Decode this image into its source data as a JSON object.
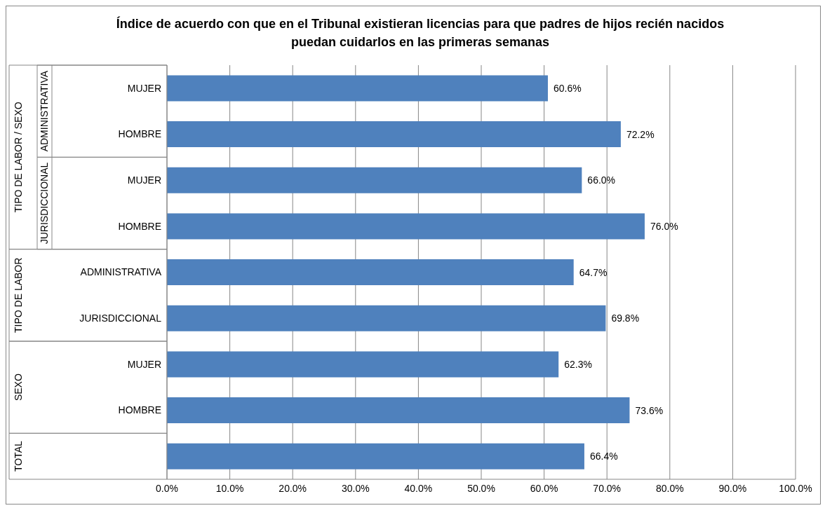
{
  "chart_data": {
    "type": "bar",
    "orientation": "horizontal",
    "title": "Índice de acuerdo con que en el Tribunal existieran licencias para que padres de hijos recién nacidos puedan cuidarlos en las primeras semanas",
    "categories": [
      "MUJER",
      "HOMBRE",
      "MUJER",
      "HOMBRE",
      "ADMINISTRATIVA",
      "JURISDICCIONAL",
      "MUJER",
      "HOMBRE",
      null
    ],
    "values": [
      60.6,
      72.2,
      66.0,
      76.0,
      64.7,
      69.8,
      62.3,
      73.6,
      66.4
    ],
    "value_labels": [
      "60.6%",
      "72.2%",
      "66.0%",
      "76.0%",
      "64.7%",
      "69.8%",
      "62.3%",
      "73.6%",
      "66.4%"
    ],
    "color": "#4f81bd",
    "xlim": [
      0,
      100
    ],
    "xticks": [
      {
        "value": 0,
        "label": "0.0%"
      },
      {
        "value": 10,
        "label": "10.0%"
      },
      {
        "value": 20,
        "label": "20.0%"
      },
      {
        "value": 30,
        "label": "30.0%"
      },
      {
        "value": 40,
        "label": "40.0%"
      },
      {
        "value": 50,
        "label": "50.0%"
      },
      {
        "value": 60,
        "label": "60.0%"
      },
      {
        "value": 70,
        "label": "70.0%"
      },
      {
        "value": 80,
        "label": "80.0%"
      },
      {
        "value": 90,
        "label": "90.0%"
      },
      {
        "value": 100,
        "label": "100.0%"
      }
    ],
    "grid": "x",
    "annotations": [
      "TIPO DE LABOR / SEXO",
      "ADMINISTRATIVA",
      "JURISDICCIONAL",
      "TIPO DE LABOR",
      "SEXO",
      "TOTAL"
    ]
  }
}
